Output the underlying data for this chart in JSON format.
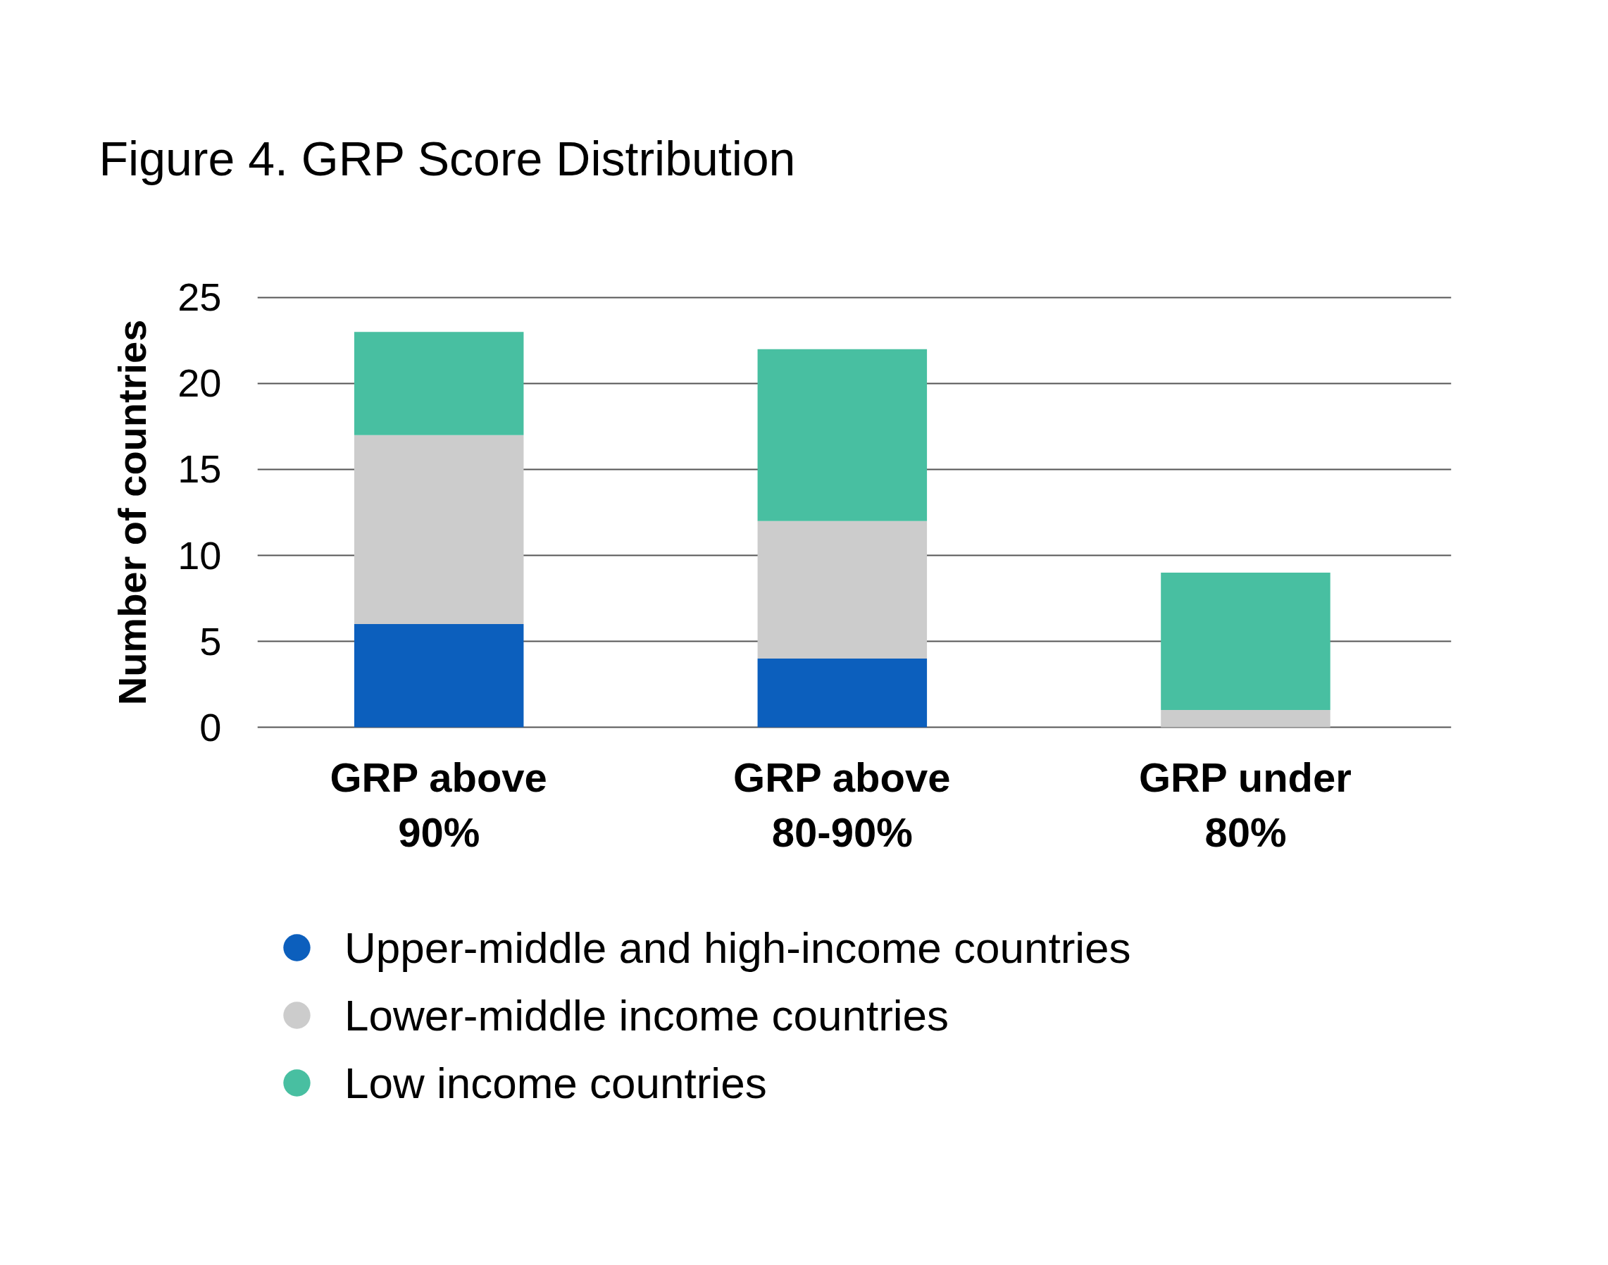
{
  "chart_data": {
    "type": "bar",
    "title": "Figure 4. GRP Score Distribution",
    "ylabel": "Number of countries",
    "categories": [
      "GRP above 90%",
      "GRP above 80-90%",
      "GRP under 80%"
    ],
    "series": [
      {
        "name": "Upper-middle and high-income countries",
        "color": "#0c5fbd",
        "values": [
          6,
          4,
          0
        ]
      },
      {
        "name": "Lower-middle income countries",
        "color": "#cccccc",
        "values": [
          11,
          8,
          1
        ]
      },
      {
        "name": "Low income countries",
        "color": "#48bfa1",
        "values": [
          6,
          10,
          8
        ]
      }
    ],
    "stacked": true,
    "ylim": [
      0,
      25
    ],
    "yticks": [
      0,
      5,
      10,
      15,
      20,
      25
    ],
    "grid": "y",
    "legend": "bottom left"
  }
}
